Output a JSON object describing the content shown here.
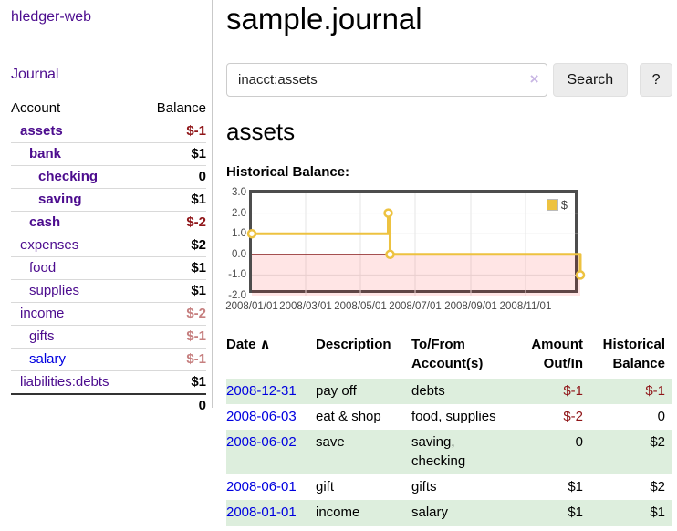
{
  "app": {
    "title": "hledger-web"
  },
  "sidebar": {
    "journal_label": "Journal",
    "headers": {
      "account": "Account",
      "balance": "Balance"
    },
    "accounts": [
      {
        "name": "assets",
        "balance": "$-1",
        "depth": 1,
        "bold": true,
        "tone": "neg"
      },
      {
        "name": "bank",
        "balance": "$1",
        "depth": 2,
        "bold": true,
        "tone": ""
      },
      {
        "name": "checking",
        "balance": "0",
        "depth": 3,
        "bold": true,
        "tone": ""
      },
      {
        "name": "saving",
        "balance": "$1",
        "depth": 3,
        "bold": true,
        "tone": ""
      },
      {
        "name": "cash",
        "balance": "$-2",
        "depth": 2,
        "bold": true,
        "tone": "neg"
      },
      {
        "name": "expenses",
        "balance": "$2",
        "depth": 1,
        "bold": false,
        "tone": ""
      },
      {
        "name": "food",
        "balance": "$1",
        "depth": 2,
        "bold": false,
        "tone": ""
      },
      {
        "name": "supplies",
        "balance": "$1",
        "depth": 2,
        "bold": false,
        "tone": ""
      },
      {
        "name": "income",
        "balance": "$-2",
        "depth": 1,
        "bold": false,
        "tone": "neg-muted"
      },
      {
        "name": "gifts",
        "balance": "$-1",
        "depth": 2,
        "bold": false,
        "tone": "neg-muted"
      },
      {
        "name": "salary",
        "balance": "$-1",
        "depth": 2,
        "bold": false,
        "tone": "neg-muted",
        "link_state": "unvisited"
      },
      {
        "name": "liabilities:debts",
        "balance": "$1",
        "depth": 1,
        "bold": false,
        "tone": ""
      }
    ],
    "total": "0"
  },
  "main": {
    "title": "sample.journal",
    "search": {
      "value": "inacct:assets",
      "clear_icon": "×",
      "button_label": "Search",
      "help_label": "?"
    },
    "account_heading": "assets",
    "section_label": "Historical Balance:"
  },
  "chart_data": {
    "type": "line",
    "title": "Historical Balance",
    "step": true,
    "series": [
      {
        "name": "$",
        "color": "#edc240",
        "points_day_value": [
          [
            0,
            1.0
          ],
          [
            152,
            2.0
          ],
          [
            154,
            0.0
          ],
          [
            366,
            -1.0
          ]
        ]
      }
    ],
    "x_ticks": [
      {
        "label": "2008/01/01",
        "day": 0
      },
      {
        "label": "2008/03/01",
        "day": 60
      },
      {
        "label": "2008/05/01",
        "day": 121
      },
      {
        "label": "2008/07/01",
        "day": 182
      },
      {
        "label": "2008/09/01",
        "day": 244
      },
      {
        "label": "2008/11/01",
        "day": 305
      }
    ],
    "y_ticks": [
      3.0,
      2.0,
      1.0,
      0.0,
      -1.0,
      -2.0
    ],
    "xlim_days": [
      0,
      366
    ],
    "ylim": [
      -2,
      3
    ],
    "grid": true,
    "negative_region_fill": "rgba(255,0,0,0.10)",
    "zero_line_color": "#8b1a1a",
    "legend": {
      "label": "$",
      "position": "top-right"
    }
  },
  "register": {
    "headers": {
      "date": "Date",
      "description": "Description",
      "accounts": "To/From Account(s)",
      "amount": "Amount Out/In",
      "balance": "Historical Balance"
    },
    "sort_icon": "∧",
    "rows": [
      {
        "date": "2008-12-31",
        "description": "pay off",
        "accounts": "debts",
        "amount": "$-1",
        "balance": "$-1"
      },
      {
        "date": "2008-06-03",
        "description": "eat & shop",
        "accounts": "food, supplies",
        "amount": "$-2",
        "balance": "0"
      },
      {
        "date": "2008-06-02",
        "description": "save",
        "accounts": "saving, checking",
        "amount": "0",
        "balance": "$2"
      },
      {
        "date": "2008-06-01",
        "description": "gift",
        "accounts": "gifts",
        "amount": "$1",
        "balance": "$2"
      },
      {
        "date": "2008-01-01",
        "description": "income",
        "accounts": "salary",
        "amount": "$1",
        "balance": "$1"
      }
    ]
  },
  "colors": {
    "link_purple": "#4c0c8e",
    "link_blue": "#0000e0",
    "negative_red": "#8f1518",
    "negative_muted": "#c67f7f",
    "row_stripe_green": "#ddeedd",
    "chart_line": "#edc240",
    "chart_border": "#4d4d4d",
    "button_bg": "#ececec"
  }
}
